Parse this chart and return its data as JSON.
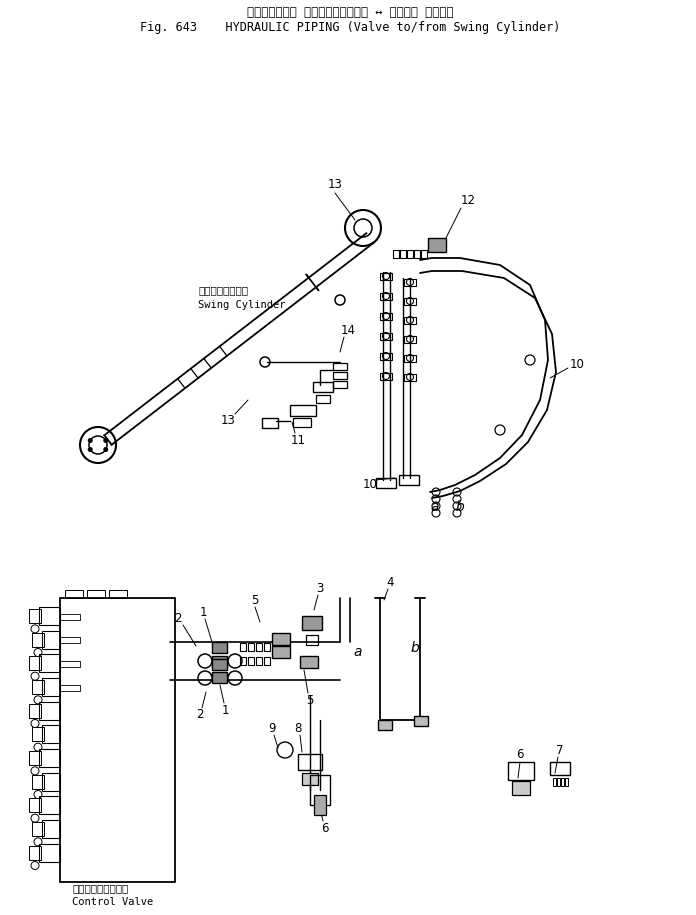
{
  "title_japanese": "ハイドロリック パイピング　バルブ ↔ スイング シリンダ",
  "title_english": "Fig. 643    HYDRAULIC PIPING (Valve to/from Swing Cylinder)",
  "bg_color": "#ffffff",
  "line_color": "#000000",
  "upper_label_japanese": "スイングシリンダ",
  "upper_label_english": "Swing Cylinder",
  "lower_label_japanese": "コントロールバルブ",
  "lower_label_english": "Control Valve",
  "figsize": [
    6.96,
    9.15
  ],
  "dpi": 100
}
